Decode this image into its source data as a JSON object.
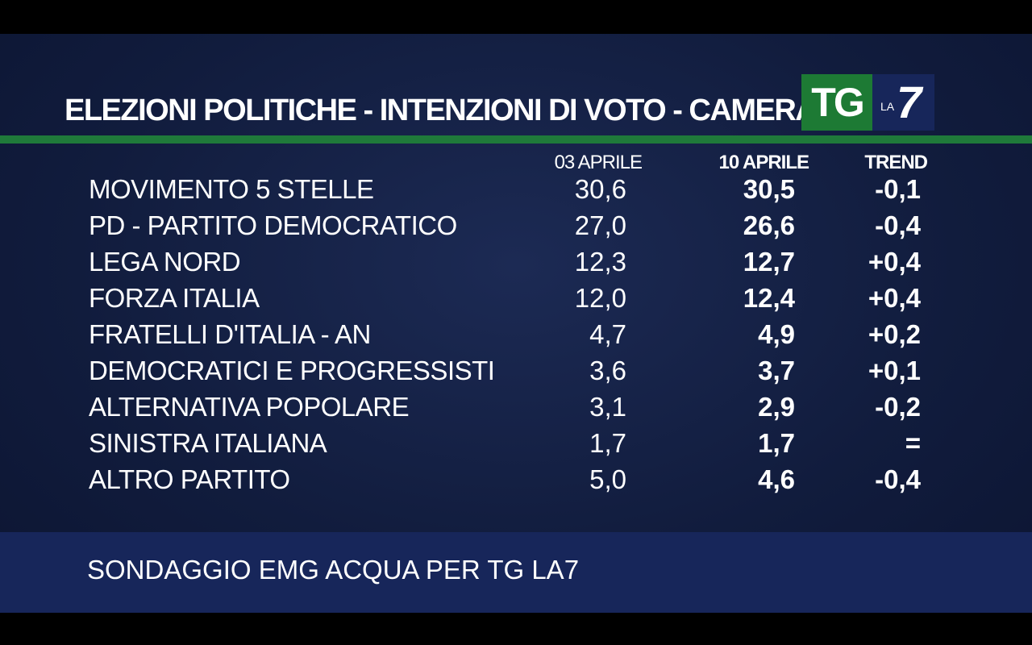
{
  "title": "ELEZIONI POLITICHE - INTENZIONI DI VOTO - CAMERA",
  "logo": {
    "tg": "TG",
    "la": "LA",
    "seven": "7"
  },
  "colors": {
    "background": "#111c3d",
    "green_line": "#1f7a3a",
    "footer": "#17265a",
    "logo_green": "#1d7a34"
  },
  "columns": {
    "date1": "03 APRILE",
    "date2": "10 APRILE",
    "trend": "TREND"
  },
  "rows": [
    {
      "party": "MOVIMENTO 5 STELLE",
      "v1": "30,6",
      "v2": "30,5",
      "trend": "-0,1"
    },
    {
      "party": "PD - PARTITO DEMOCRATICO",
      "v1": "27,0",
      "v2": "26,6",
      "trend": "-0,4"
    },
    {
      "party": "LEGA NORD",
      "v1": "12,3",
      "v2": "12,7",
      "trend": "+0,4"
    },
    {
      "party": "FORZA ITALIA",
      "v1": "12,0",
      "v2": "12,4",
      "trend": "+0,4"
    },
    {
      "party": "FRATELLI D'ITALIA - AN",
      "v1": "4,7",
      "v2": "4,9",
      "trend": "+0,2"
    },
    {
      "party": "DEMOCRATICI E PROGRESSISTI",
      "v1": "3,6",
      "v2": "3,7",
      "trend": "+0,1"
    },
    {
      "party": "ALTERNATIVA POPOLARE",
      "v1": "3,1",
      "v2": "2,9",
      "trend": "-0,2"
    },
    {
      "party": "SINISTRA ITALIANA",
      "v1": "1,7",
      "v2": "1,7",
      "trend": "="
    },
    {
      "party": "ALTRO PARTITO",
      "v1": "5,0",
      "v2": "4,6",
      "trend": "-0,4"
    }
  ],
  "source": "SONDAGGIO EMG ACQUA PER TG LA7"
}
